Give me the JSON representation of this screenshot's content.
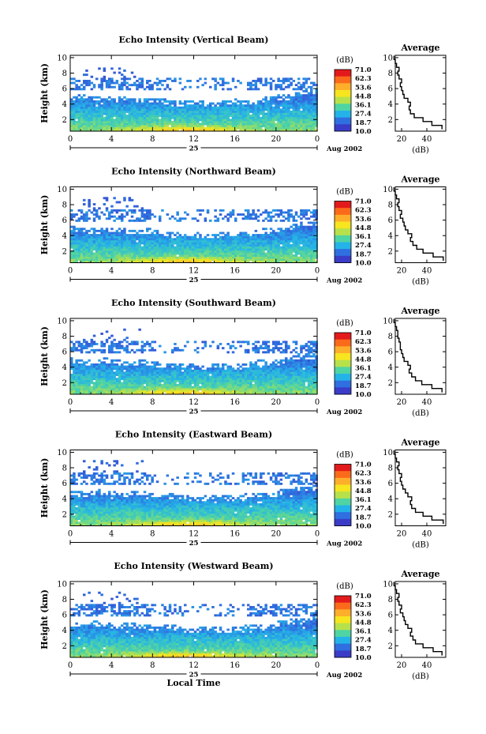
{
  "figure": {
    "x_axis_label": "Local Time",
    "date_label": "Aug 2002",
    "day_label": "25",
    "y_axis_label": "Height (km)",
    "colorbar_unit": "(dB)",
    "colorbar_labels": [
      "71.0",
      "62.3",
      "53.6",
      "44.8",
      "36.1",
      "27.4",
      "18.7",
      "10.0"
    ],
    "colorbar_colors": [
      "#e31a1c",
      "#fb6a1a",
      "#fdae2b",
      "#f6e51f",
      "#b7e14b",
      "#4fd4a3",
      "#24b3e8",
      "#2f6fe0",
      "#3a3cc8"
    ],
    "avg_title": "Average",
    "avg_xlabel": "(dB)"
  },
  "chart_data": [
    {
      "type": "heatmap",
      "title": "Echo Intensity (Vertical Beam)",
      "xlabel": "",
      "ylabel": "Height (km)",
      "x_ticks": [
        "0",
        "4",
        "8",
        "12",
        "16",
        "20",
        "0"
      ],
      "y_ticks": [
        "2",
        "4",
        "6",
        "8",
        "10"
      ],
      "xlim": [
        0,
        24
      ],
      "ylim": [
        0.5,
        10.3
      ],
      "colorbar_range": [
        10.0,
        71.0
      ],
      "profile": {
        "title": "Average",
        "xlabel": "(dB)",
        "x_ticks": [
          "20",
          "40"
        ],
        "y_ticks": [
          "2",
          "4",
          "6",
          "8",
          "10"
        ],
        "xlim": [
          15,
          55
        ],
        "heights": [
          1,
          1.5,
          2,
          2.5,
          3,
          3.5,
          4,
          4.5,
          5,
          5.5,
          6,
          6.5,
          7,
          7.5,
          8,
          8.5,
          9,
          9.5,
          10
        ],
        "values": [
          52,
          44,
          37,
          30,
          27,
          26,
          27,
          25,
          22,
          21,
          20,
          19,
          20,
          18,
          17,
          18,
          16,
          15,
          14
        ]
      }
    },
    {
      "type": "heatmap",
      "title": "Echo Intensity (Northward Beam)",
      "xlabel": "",
      "ylabel": "Height (km)",
      "x_ticks": [
        "0",
        "4",
        "8",
        "12",
        "16",
        "20",
        "0"
      ],
      "y_ticks": [
        "2",
        "4",
        "6",
        "8",
        "10"
      ],
      "xlim": [
        0,
        24
      ],
      "ylim": [
        0.5,
        10.3
      ],
      "colorbar_range": [
        10.0,
        71.0
      ],
      "profile": {
        "title": "Average",
        "xlabel": "(dB)",
        "x_ticks": [
          "20",
          "40"
        ],
        "y_ticks": [
          "2",
          "4",
          "6",
          "8",
          "10"
        ],
        "xlim": [
          15,
          55
        ],
        "heights": [
          1,
          1.5,
          2,
          2.5,
          3,
          3.5,
          4,
          4.5,
          5,
          5.5,
          6,
          6.5,
          7,
          7.5,
          8,
          8.5,
          9,
          9.5,
          10
        ],
        "values": [
          53,
          45,
          37,
          32,
          29,
          27,
          28,
          25,
          23,
          22,
          21,
          19,
          20,
          18,
          17,
          18,
          16,
          15,
          14
        ]
      }
    },
    {
      "type": "heatmap",
      "title": "Echo Intensity (Southward Beam)",
      "xlabel": "",
      "ylabel": "Height (km)",
      "x_ticks": [
        "0",
        "4",
        "8",
        "12",
        "16",
        "20",
        "0"
      ],
      "y_ticks": [
        "2",
        "4",
        "6",
        "8",
        "10"
      ],
      "xlim": [
        0,
        24
      ],
      "ylim": [
        0.5,
        10.3
      ],
      "colorbar_range": [
        10.0,
        71.0
      ],
      "profile": {
        "title": "Average",
        "xlabel": "(dB)",
        "x_ticks": [
          "20",
          "40"
        ],
        "y_ticks": [
          "2",
          "4",
          "6",
          "8",
          "10"
        ],
        "xlim": [
          15,
          55
        ],
        "heights": [
          1,
          1.5,
          2,
          2.5,
          3,
          3.5,
          4,
          4.5,
          5,
          5.5,
          6,
          6.5,
          7,
          7.5,
          8,
          8.5,
          9,
          9.5,
          10
        ],
        "values": [
          52,
          44,
          36,
          31,
          28,
          26,
          27,
          25,
          22,
          21,
          20,
          19,
          19,
          18,
          17,
          17,
          16,
          15,
          14
        ]
      }
    },
    {
      "type": "heatmap",
      "title": "Echo Intensity (Eastward Beam)",
      "xlabel": "",
      "ylabel": "Height (km)",
      "x_ticks": [
        "0",
        "4",
        "8",
        "12",
        "16",
        "20",
        "0"
      ],
      "y_ticks": [
        "2",
        "4",
        "6",
        "8",
        "10"
      ],
      "xlim": [
        0,
        24
      ],
      "ylim": [
        0.5,
        10.3
      ],
      "colorbar_range": [
        10.0,
        71.0
      ],
      "profile": {
        "title": "Average",
        "xlabel": "(dB)",
        "x_ticks": [
          "20",
          "40"
        ],
        "y_ticks": [
          "2",
          "4",
          "6",
          "8",
          "10"
        ],
        "xlim": [
          15,
          55
        ],
        "heights": [
          1,
          1.5,
          2,
          2.5,
          3,
          3.5,
          4,
          4.5,
          5,
          5.5,
          6,
          6.5,
          7,
          7.5,
          8,
          8.5,
          9,
          9.5,
          10
        ],
        "values": [
          53,
          44,
          37,
          31,
          28,
          27,
          28,
          25,
          23,
          21,
          20,
          19,
          20,
          18,
          17,
          18,
          16,
          15,
          14
        ]
      }
    },
    {
      "type": "heatmap",
      "title": "Echo Intensity (Westward Beam)",
      "xlabel": "Local Time",
      "ylabel": "Height (km)",
      "x_ticks": [
        "0",
        "4",
        "8",
        "12",
        "16",
        "20",
        "0"
      ],
      "y_ticks": [
        "2",
        "4",
        "6",
        "8",
        "10"
      ],
      "xlim": [
        0,
        24
      ],
      "ylim": [
        0.5,
        10.3
      ],
      "colorbar_range": [
        10.0,
        71.0
      ],
      "profile": {
        "title": "Average",
        "xlabel": "(dB)",
        "x_ticks": [
          "20",
          "40"
        ],
        "y_ticks": [
          "2",
          "4",
          "6",
          "8",
          "10"
        ],
        "xlim": [
          15,
          55
        ],
        "heights": [
          1,
          1.5,
          2,
          2.5,
          3,
          3.5,
          4,
          4.5,
          5,
          5.5,
          6,
          6.5,
          7,
          7.5,
          8,
          8.5,
          9,
          9.5,
          10
        ],
        "values": [
          52,
          45,
          37,
          31,
          29,
          27,
          28,
          25,
          23,
          22,
          21,
          19,
          20,
          18,
          17,
          18,
          16,
          15,
          14
        ]
      }
    }
  ]
}
